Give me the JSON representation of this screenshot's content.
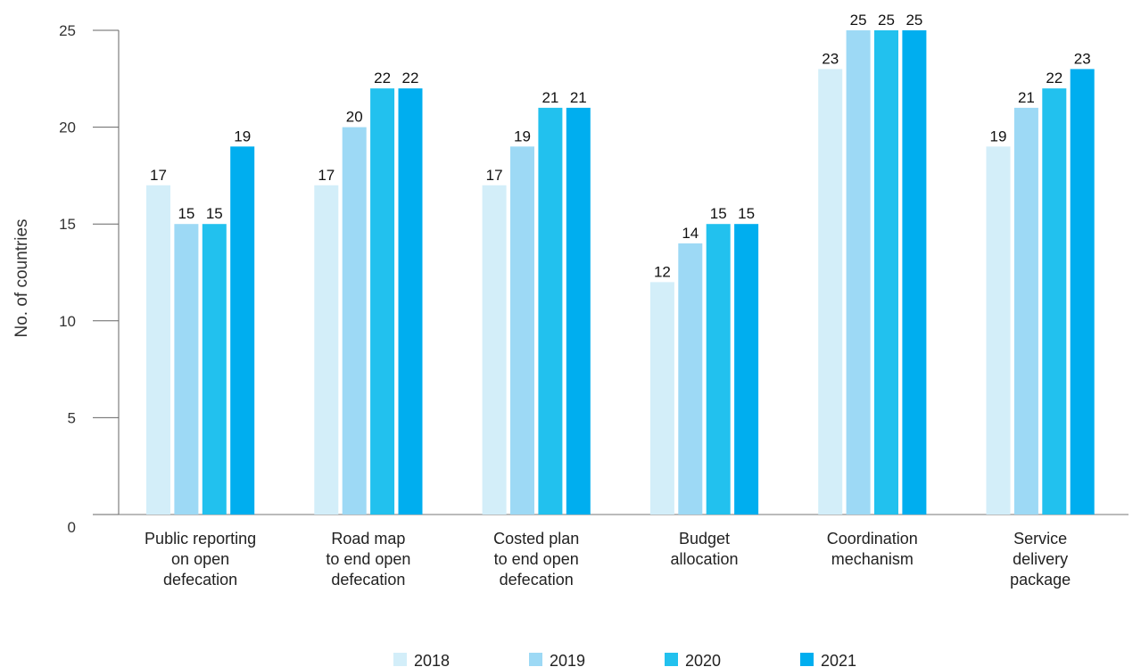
{
  "chart_data": {
    "type": "bar",
    "ylabel": "No. of countries",
    "xlabel": "",
    "ylim": [
      0,
      25
    ],
    "yticks": [
      0,
      5,
      10,
      15,
      20,
      25
    ],
    "categories": [
      [
        "Public reporting",
        "on open",
        "defecation"
      ],
      [
        "Road map",
        "to end open",
        "defecation"
      ],
      [
        "Costed plan",
        "to end open",
        "defecation"
      ],
      [
        "Budget",
        "allocation"
      ],
      [
        "Coordination",
        "mechanism"
      ],
      [
        "Service",
        "delivery",
        "package"
      ]
    ],
    "series": [
      {
        "name": "2018",
        "color": "#d3eef9",
        "values": [
          17,
          17,
          17,
          12,
          23,
          19
        ]
      },
      {
        "name": "2019",
        "color": "#9dd9f5",
        "values": [
          15,
          20,
          19,
          14,
          25,
          21
        ]
      },
      {
        "name": "2020",
        "color": "#22c1ee",
        "values": [
          15,
          22,
          21,
          15,
          25,
          22
        ]
      },
      {
        "name": "2021",
        "color": "#00aeef",
        "values": [
          19,
          22,
          21,
          15,
          25,
          23
        ]
      }
    ],
    "legend_position": "bottom-center",
    "grid": false
  }
}
